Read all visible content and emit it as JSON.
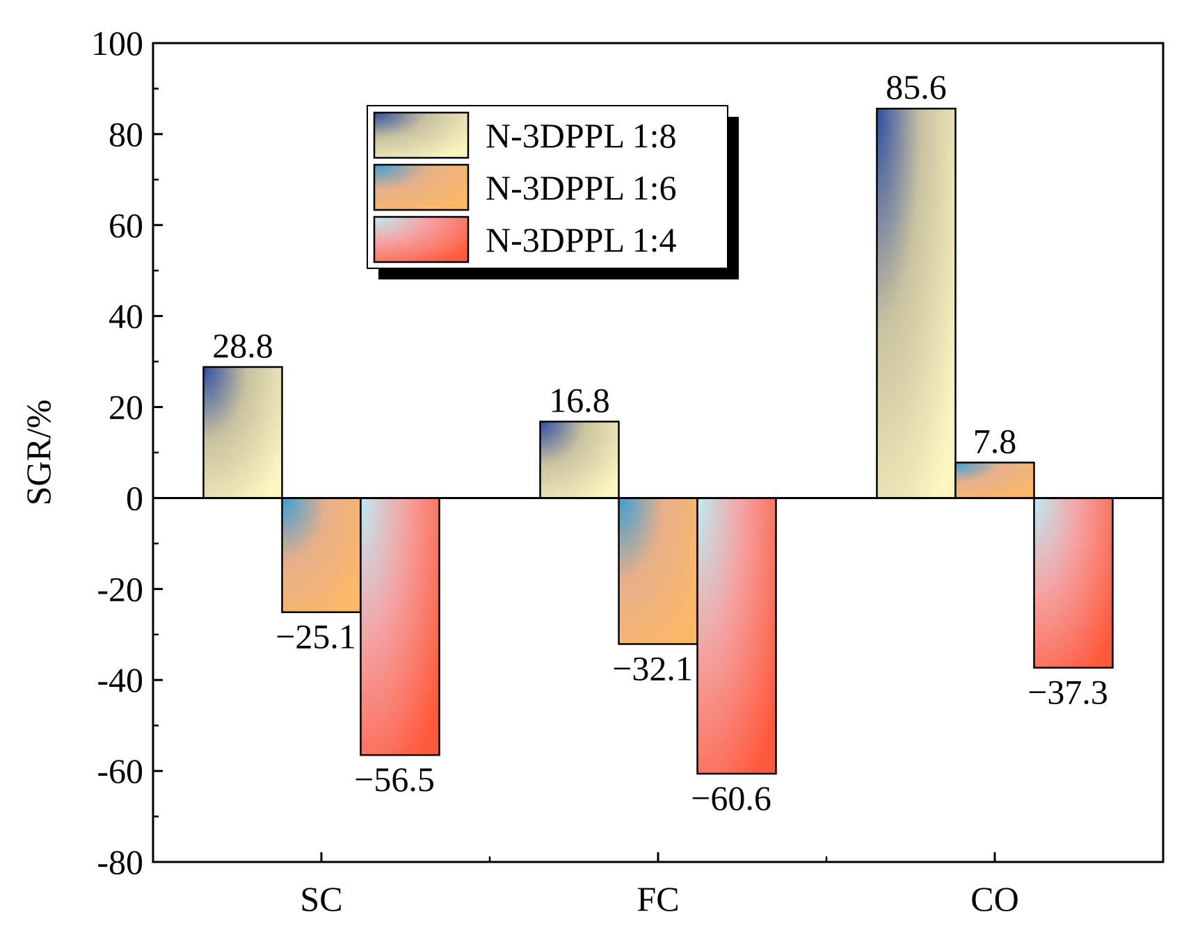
{
  "chart_data": {
    "type": "bar",
    "title": "",
    "xlabel": "",
    "ylabel": "SGR/%",
    "ylim": [
      -80,
      100
    ],
    "yticks": [
      100,
      80,
      60,
      40,
      20,
      0,
      -20,
      -40,
      -60,
      -80
    ],
    "ytick_labels": [
      "100",
      "80",
      "60",
      "40",
      "20",
      "0",
      "-20",
      "-40",
      "-60",
      "-80"
    ],
    "categories": [
      "SC",
      "FC",
      "CO"
    ],
    "series": [
      {
        "name": "N-3DPPL 1:8",
        "values": [
          28.8,
          16.8,
          85.6
        ],
        "labels": [
          "28.8",
          "16.8",
          "85.6"
        ],
        "gradient": {
          "corner": "#2f4ea3",
          "mid": "#c9c2a0",
          "light": "#fbf6c0"
        }
      },
      {
        "name": "N-3DPPL 1:6",
        "values": [
          -25.1,
          -32.1,
          7.8
        ],
        "labels": [
          "−25.1",
          "−32.1",
          "7.8"
        ],
        "gradient": {
          "corner": "#3a9ed6",
          "mid": "#e6b08a",
          "light": "#fdb866"
        }
      },
      {
        "name": "N-3DPPL 1:4",
        "values": [
          -56.5,
          -60.6,
          -37.3
        ],
        "labels": [
          "−56.5",
          "−60.6",
          "−37.3"
        ],
        "gradient": {
          "corner": "#bfeaf2",
          "mid": "#f4a3a3",
          "light": "#ff5a3c"
        }
      }
    ],
    "legend_position": "top-center",
    "grid": false
  }
}
